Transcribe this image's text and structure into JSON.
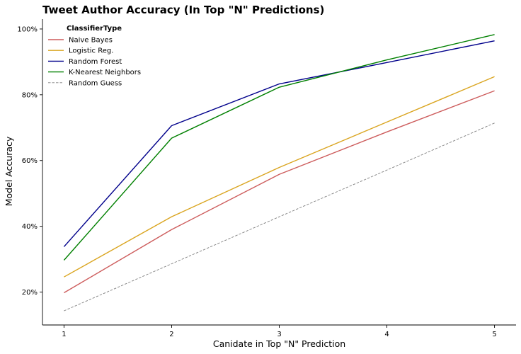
{
  "chart_data": {
    "type": "line",
    "title": "Tweet Author Accuracy (In Top \"N\" Predictions)",
    "xlabel": "Canidate in Top \"N\" Prediction",
    "ylabel": "Model Accuracy",
    "x": [
      1,
      2,
      3,
      4,
      5
    ],
    "x_ticks": [
      "1",
      "2",
      "3",
      "4",
      "5"
    ],
    "y_ticks": [
      "20%",
      "40%",
      "60%",
      "80%",
      "100%"
    ],
    "xlim": [
      0.8,
      5.2
    ],
    "ylim": [
      0.1,
      1.03
    ],
    "legend_title": "ClassifierType",
    "legend_position": "top-left",
    "grid": false,
    "series": [
      {
        "name": "Naive Bayes",
        "color": "#cd5c5c",
        "dashed": false,
        "values": [
          0.198,
          0.39,
          0.558,
          0.687,
          0.812
        ]
      },
      {
        "name": "Logistic Reg.",
        "color": "#daa520",
        "dashed": false,
        "values": [
          0.246,
          0.429,
          0.579,
          0.717,
          0.855
        ]
      },
      {
        "name": "Random Forest",
        "color": "#00008b",
        "dashed": false,
        "values": [
          0.338,
          0.706,
          0.833,
          0.898,
          0.964
        ]
      },
      {
        "name": "K-Nearest Neighbors",
        "color": "#008000",
        "dashed": false,
        "values": [
          0.297,
          0.668,
          0.823,
          0.906,
          0.983
        ]
      },
      {
        "name": "Random Guess",
        "color": "#808080",
        "dashed": true,
        "values": [
          0.143,
          0.286,
          0.429,
          0.571,
          0.714
        ]
      }
    ]
  }
}
